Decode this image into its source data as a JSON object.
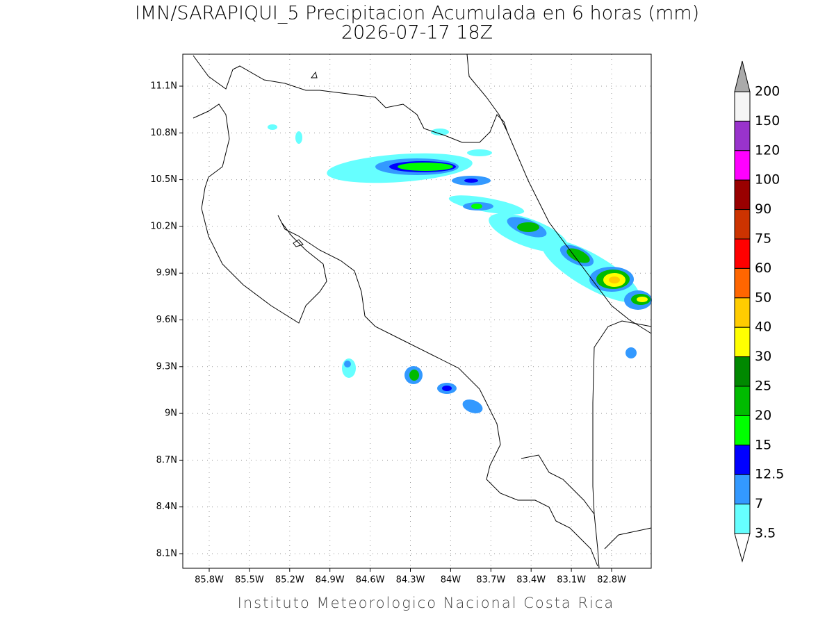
{
  "title": "IMN/SARAPIQUI_5 Precipitacion Acumulada en 6 horas (mm)",
  "subtitle": "2026-07-17 18Z",
  "map": {
    "lat_labels": [
      "11.1N",
      "10.8N",
      "10.5N",
      "10.2N",
      "9.9N",
      "9.6N",
      "9.3N",
      "9N",
      "8.7N",
      "8.4N",
      "8.1N"
    ],
    "lon_labels": [
      "85.8W",
      "85.5W",
      "85.2W",
      "84.9W",
      "84.6W",
      "84.3W",
      "84W",
      "83.7W",
      "83.4W",
      "83.1W",
      "82.8W"
    ]
  },
  "colorbar": {
    "labels": [
      "200",
      "150",
      "120",
      "100",
      "90",
      "75",
      "60",
      "50",
      "40",
      "30",
      "25",
      "20",
      "15",
      "12.5",
      "7",
      "3.5"
    ],
    "colors": [
      "#f5f5f5",
      "#9933cc",
      "#ff00ff",
      "#990000",
      "#cc3300",
      "#ff0000",
      "#ff6600",
      "#ffcc00",
      "#ffff00",
      "#008800",
      "#00bb00",
      "#00ff00",
      "#0000ff",
      "#3399ff",
      "#66ffff"
    ],
    "over_color": "#aaaaaa",
    "under_color": "#ffffff"
  },
  "footer": "Instituto Meteorologico Nacional Costa Rica"
}
